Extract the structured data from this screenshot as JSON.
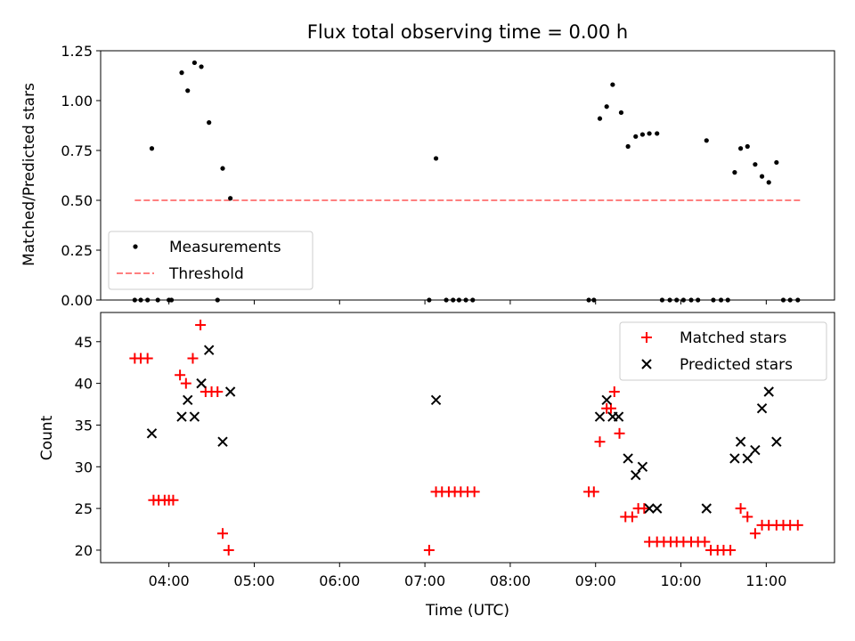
{
  "chart_data": [
    {
      "type": "scatter",
      "title": "Flux total observing time = 0.00 h",
      "xlabel": "",
      "ylabel": "Matched/Predicted stars",
      "xlim_hours": [
        3.2,
        11.8
      ],
      "ylim": [
        0,
        1.25
      ],
      "yticks": [
        "0.00",
        "0.25",
        "0.50",
        "0.75",
        "1.00",
        "1.25"
      ],
      "legend_position": "lower-left",
      "series": [
        {
          "name": "Measurements",
          "color": "#000000",
          "marker": "dot",
          "x": [
            3.6,
            3.67,
            3.75,
            3.8,
            3.87,
            4.0,
            4.03,
            4.15,
            4.22,
            4.3,
            4.38,
            4.47,
            4.57,
            4.63,
            4.72,
            7.05,
            7.13,
            7.25,
            7.33,
            7.4,
            7.48,
            7.56,
            8.92,
            8.98,
            9.05,
            9.13,
            9.2,
            9.3,
            9.38,
            9.47,
            9.55,
            9.63,
            9.72,
            9.78,
            9.87,
            9.95,
            10.03,
            10.12,
            10.2,
            10.3,
            10.38,
            10.47,
            10.55,
            10.63,
            10.7,
            10.78,
            10.87,
            10.95,
            11.03,
            11.12,
            11.2,
            11.28,
            11.37
          ],
          "y": [
            0,
            0,
            0,
            0.76,
            0,
            0,
            0,
            1.14,
            1.05,
            1.19,
            1.17,
            0.89,
            0,
            0.66,
            0.51,
            0,
            0.71,
            0,
            0,
            0,
            0,
            0,
            0,
            0,
            0.91,
            0.97,
            1.08,
            0.94,
            0.77,
            0.82,
            0.83,
            0.835,
            0.835,
            0,
            0,
            0,
            0,
            0,
            0,
            0.8,
            0,
            0,
            0,
            0.64,
            0.76,
            0.77,
            0.68,
            0.62,
            0.59,
            0.69,
            0,
            0,
            0
          ]
        },
        {
          "name": "Threshold",
          "color": "#ff8080",
          "style": "dashed",
          "x": [
            3.6,
            11.4
          ],
          "y": [
            0.5,
            0.5
          ]
        }
      ]
    },
    {
      "type": "scatter",
      "title": "",
      "xlabel": "Time (UTC)",
      "ylabel": "Count",
      "xlim_hours": [
        3.2,
        11.8
      ],
      "ylim": [
        18.5,
        48.5
      ],
      "yticks": [
        "20",
        "25",
        "30",
        "35",
        "40",
        "45"
      ],
      "xticks": [
        "04:00",
        "05:00",
        "06:00",
        "07:00",
        "08:00",
        "09:00",
        "10:00",
        "11:00"
      ],
      "legend_position": "top-right",
      "series": [
        {
          "name": "Matched stars",
          "color": "#ff0000",
          "marker": "plus",
          "x": [
            3.6,
            3.67,
            3.75,
            3.82,
            3.88,
            3.95,
            4.0,
            4.05,
            4.13,
            4.2,
            4.28,
            4.37,
            4.43,
            4.5,
            4.57,
            4.63,
            4.7,
            7.05,
            7.13,
            7.2,
            7.28,
            7.35,
            7.42,
            7.5,
            7.58,
            8.92,
            8.98,
            9.05,
            9.13,
            9.18,
            9.22,
            9.28,
            9.35,
            9.43,
            9.5,
            9.57,
            9.63,
            9.72,
            9.8,
            9.88,
            9.95,
            10.03,
            10.12,
            10.2,
            10.28,
            10.35,
            10.43,
            10.5,
            10.58,
            10.7,
            10.78,
            10.87,
            10.95,
            11.03,
            11.12,
            11.2,
            11.28,
            11.37
          ],
          "y": [
            43,
            43,
            43,
            26,
            26,
            26,
            26,
            26,
            41,
            40,
            43,
            47,
            39,
            39,
            39,
            22,
            20,
            20,
            27,
            27,
            27,
            27,
            27,
            27,
            27,
            27,
            27,
            33,
            37,
            37,
            39,
            34,
            24,
            24,
            25,
            25,
            21,
            21,
            21,
            21,
            21,
            21,
            21,
            21,
            21,
            20,
            20,
            20,
            20,
            25,
            24,
            22,
            23,
            23,
            23,
            23,
            23,
            23
          ]
        },
        {
          "name": "Predicted stars",
          "color": "#000000",
          "marker": "x",
          "x": [
            3.8,
            4.15,
            4.22,
            4.3,
            4.38,
            4.47,
            4.63,
            4.72,
            7.13,
            9.05,
            9.13,
            9.2,
            9.27,
            9.38,
            9.47,
            9.55,
            9.63,
            9.72,
            10.3,
            10.63,
            10.7,
            10.78,
            10.87,
            10.95,
            11.03,
            11.12
          ],
          "y": [
            34,
            36,
            38,
            36,
            40,
            44,
            33,
            39,
            38,
            36,
            38,
            36,
            36,
            31,
            29,
            30,
            25,
            25,
            25,
            31,
            33,
            31,
            32,
            37,
            39,
            33
          ]
        }
      ]
    }
  ]
}
